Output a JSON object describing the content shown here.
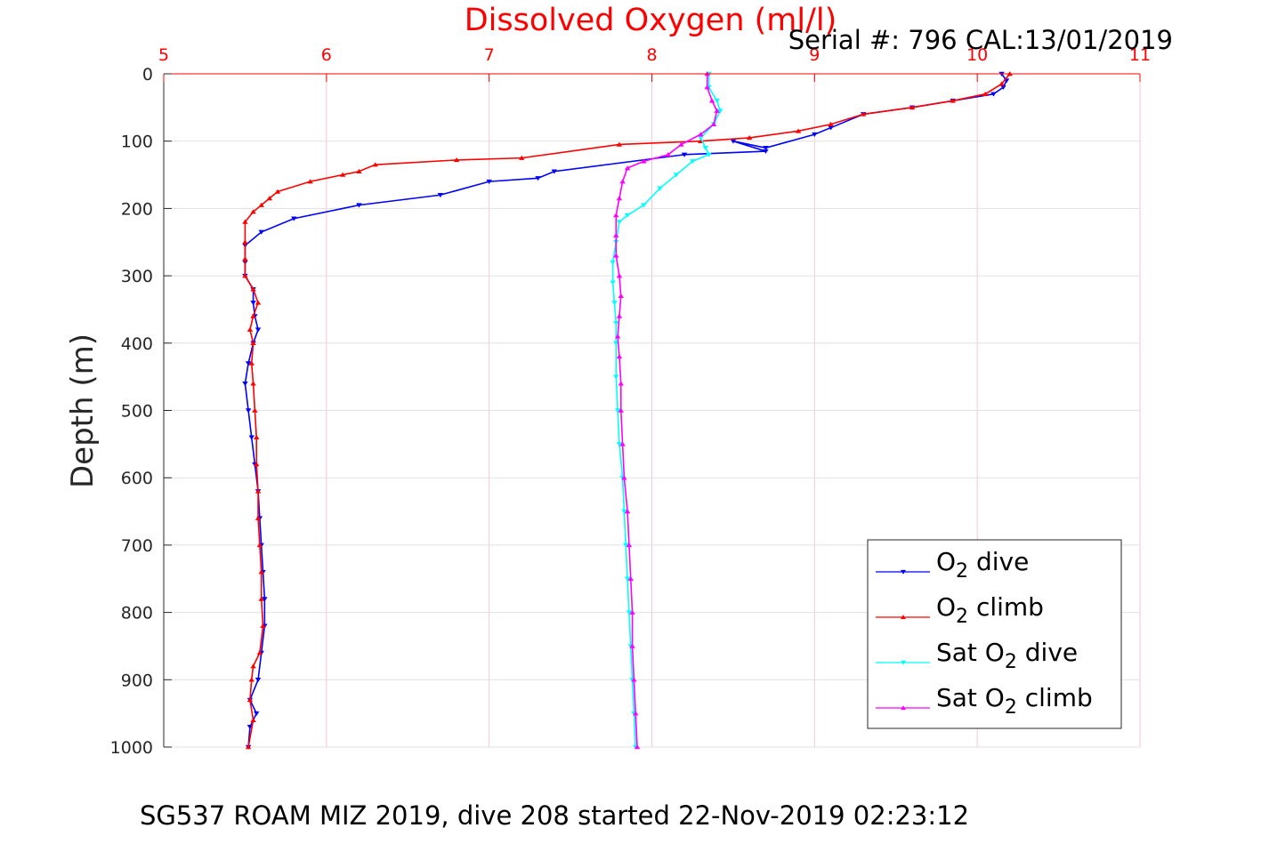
{
  "chart_data": {
    "type": "scatter",
    "title": "Dissolved Oxygen (ml/l)",
    "title_color": "#ff0000",
    "serial_label": "Serial #: 796  CAL:13/01/2019",
    "caption": "SG537 ROAM MIZ 2019, dive 208 started 22-Nov-2019 02:23:12",
    "xlabel": "",
    "ylabel": "Depth (m)",
    "x_axis_position": "top",
    "y_reversed": true,
    "xlim": [
      5,
      11
    ],
    "ylim": [
      0,
      1000
    ],
    "xticks": [
      5,
      6,
      7,
      8,
      9,
      10,
      11
    ],
    "yticks": [
      0,
      100,
      200,
      300,
      400,
      500,
      600,
      700,
      800,
      900,
      1000
    ],
    "x_tick_color": "#ff0000",
    "grid": true,
    "legend_position": "bottom-right",
    "legend": [
      {
        "prefix": "O",
        "sub": "2",
        "suffix": " dive"
      },
      {
        "prefix": "O",
        "sub": "2",
        "suffix": " climb"
      },
      {
        "prefix": "Sat O",
        "sub": "2",
        "suffix": " dive"
      },
      {
        "prefix": "Sat O",
        "sub": "2",
        "suffix": " climb"
      }
    ],
    "series": [
      {
        "id": "o2-dive",
        "color": "#0000ff",
        "marker": "triangle-down",
        "points": [
          [
            10.15,
            0
          ],
          [
            10.18,
            10
          ],
          [
            10.16,
            20
          ],
          [
            10.1,
            30
          ],
          [
            9.85,
            40
          ],
          [
            9.6,
            50
          ],
          [
            9.3,
            60
          ],
          [
            9.1,
            80
          ],
          [
            9,
            90
          ],
          [
            8.7,
            110
          ],
          [
            8.5,
            100
          ],
          [
            8.7,
            115
          ],
          [
            8.2,
            120
          ],
          [
            7.4,
            145
          ],
          [
            7.3,
            155
          ],
          [
            7,
            160
          ],
          [
            6.7,
            180
          ],
          [
            6.2,
            195
          ],
          [
            5.8,
            215
          ],
          [
            5.6,
            235
          ],
          [
            5.5,
            255
          ],
          [
            5.5,
            280
          ],
          [
            5.5,
            300
          ],
          [
            5.55,
            320
          ],
          [
            5.55,
            340
          ],
          [
            5.56,
            360
          ],
          [
            5.58,
            380
          ],
          [
            5.55,
            400
          ],
          [
            5.52,
            430
          ],
          [
            5.5,
            460
          ],
          [
            5.52,
            500
          ],
          [
            5.54,
            540
          ],
          [
            5.56,
            580
          ],
          [
            5.58,
            620
          ],
          [
            5.59,
            660
          ],
          [
            5.6,
            700
          ],
          [
            5.61,
            740
          ],
          [
            5.62,
            780
          ],
          [
            5.62,
            820
          ],
          [
            5.6,
            860
          ],
          [
            5.58,
            900
          ],
          [
            5.53,
            930
          ],
          [
            5.57,
            950
          ],
          [
            5.53,
            970
          ],
          [
            5.52,
            1000
          ]
        ]
      },
      {
        "id": "o2-climb",
        "color": "#ff0000",
        "marker": "triangle-up",
        "points": [
          [
            10.2,
            0
          ],
          [
            10.15,
            15
          ],
          [
            10.05,
            30
          ],
          [
            9.85,
            40
          ],
          [
            9.6,
            50
          ],
          [
            9.3,
            60
          ],
          [
            9.1,
            75
          ],
          [
            8.9,
            85
          ],
          [
            8.6,
            95
          ],
          [
            8.3,
            100
          ],
          [
            7.8,
            105
          ],
          [
            7.2,
            125
          ],
          [
            6.8,
            128
          ],
          [
            6.3,
            135
          ],
          [
            6.2,
            145
          ],
          [
            6.1,
            150
          ],
          [
            5.9,
            160
          ],
          [
            5.7,
            175
          ],
          [
            5.65,
            185
          ],
          [
            5.6,
            195
          ],
          [
            5.55,
            205
          ],
          [
            5.5,
            220
          ],
          [
            5.5,
            250
          ],
          [
            5.5,
            275
          ],
          [
            5.5,
            300
          ],
          [
            5.55,
            320
          ],
          [
            5.58,
            340
          ],
          [
            5.55,
            360
          ],
          [
            5.53,
            380
          ],
          [
            5.55,
            400
          ],
          [
            5.54,
            430
          ],
          [
            5.55,
            460
          ],
          [
            5.56,
            500
          ],
          [
            5.57,
            540
          ],
          [
            5.57,
            580
          ],
          [
            5.58,
            620
          ],
          [
            5.58,
            660
          ],
          [
            5.59,
            700
          ],
          [
            5.6,
            740
          ],
          [
            5.6,
            780
          ],
          [
            5.61,
            820
          ],
          [
            5.59,
            860
          ],
          [
            5.55,
            880
          ],
          [
            5.54,
            900
          ],
          [
            5.53,
            930
          ],
          [
            5.55,
            960
          ],
          [
            5.52,
            1000
          ]
        ]
      },
      {
        "id": "sat-dive",
        "color": "#00ffff",
        "marker": "triangle-down",
        "points": [
          [
            8.35,
            0
          ],
          [
            8.35,
            20
          ],
          [
            8.4,
            40
          ],
          [
            8.42,
            55
          ],
          [
            8.38,
            75
          ],
          [
            8.3,
            95
          ],
          [
            8.33,
            110
          ],
          [
            8.35,
            120
          ],
          [
            8.25,
            130
          ],
          [
            8.15,
            150
          ],
          [
            8.05,
            170
          ],
          [
            7.95,
            195
          ],
          [
            7.85,
            210
          ],
          [
            7.8,
            220
          ],
          [
            7.78,
            250
          ],
          [
            7.76,
            280
          ],
          [
            7.76,
            310
          ],
          [
            7.77,
            340
          ],
          [
            7.78,
            370
          ],
          [
            7.78,
            400
          ],
          [
            7.78,
            450
          ],
          [
            7.79,
            500
          ],
          [
            7.8,
            550
          ],
          [
            7.82,
            600
          ],
          [
            7.83,
            650
          ],
          [
            7.84,
            700
          ],
          [
            7.85,
            750
          ],
          [
            7.86,
            800
          ],
          [
            7.87,
            850
          ],
          [
            7.88,
            900
          ],
          [
            7.89,
            950
          ],
          [
            7.9,
            1000
          ]
        ]
      },
      {
        "id": "sat-climb",
        "color": "#ff00ff",
        "marker": "triangle-up",
        "points": [
          [
            8.34,
            0
          ],
          [
            8.34,
            20
          ],
          [
            8.37,
            40
          ],
          [
            8.4,
            55
          ],
          [
            8.38,
            75
          ],
          [
            8.3,
            90
          ],
          [
            8.18,
            105
          ],
          [
            8.1,
            120
          ],
          [
            7.95,
            130
          ],
          [
            7.85,
            140
          ],
          [
            7.82,
            160
          ],
          [
            7.8,
            185
          ],
          [
            7.78,
            210
          ],
          [
            7.78,
            240
          ],
          [
            7.78,
            270
          ],
          [
            7.8,
            300
          ],
          [
            7.81,
            330
          ],
          [
            7.8,
            360
          ],
          [
            7.79,
            390
          ],
          [
            7.8,
            420
          ],
          [
            7.81,
            460
          ],
          [
            7.81,
            500
          ],
          [
            7.82,
            550
          ],
          [
            7.83,
            600
          ],
          [
            7.85,
            650
          ],
          [
            7.86,
            700
          ],
          [
            7.87,
            750
          ],
          [
            7.88,
            800
          ],
          [
            7.88,
            850
          ],
          [
            7.89,
            900
          ],
          [
            7.9,
            950
          ],
          [
            7.91,
            1000
          ]
        ]
      }
    ]
  }
}
